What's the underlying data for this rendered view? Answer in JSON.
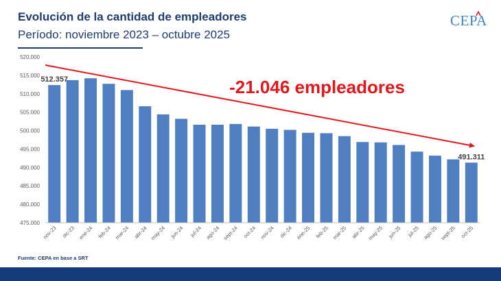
{
  "header": {
    "title": "Evolución de la cantidad de empleadores",
    "subtitle": "Período: noviembre 2023 – octubre 2025",
    "logo": "CEPA"
  },
  "footer": {
    "source": "Fuente: CEPA en base a SRT"
  },
  "colors": {
    "bar": "#4f7fc0",
    "arrow": "#e3171b",
    "title": "#1f3b70",
    "footer_bar": "#163a7a"
  },
  "chart_data": {
    "type": "bar",
    "categories": [
      "nov-23",
      "dic-23",
      "ene-24",
      "feb-24",
      "mar-24",
      "abr-24",
      "may-24",
      "jun-24",
      "jul-24",
      "ago-24",
      "sept-24",
      "oct-24",
      "nov-24",
      "dic-24",
      "ene-25",
      "feb-25",
      "mar-25",
      "abr-25",
      "may-25",
      "jun-25",
      "jul-25",
      "ago-25",
      "sept-25",
      "oct-25"
    ],
    "values": [
      512357,
      513700,
      514200,
      512700,
      511000,
      506600,
      504400,
      503200,
      501600,
      501600,
      501800,
      501100,
      500500,
      500200,
      499400,
      499300,
      498500,
      496900,
      496800,
      496100,
      494300,
      493200,
      492200,
      491311
    ],
    "ylim": [
      475000,
      520000
    ],
    "yticks": [
      475000,
      480000,
      485000,
      490000,
      495000,
      500000,
      505000,
      510000,
      515000,
      520000
    ],
    "ytick_labels": [
      "475.000",
      "480.000",
      "485.000",
      "490.000",
      "495.000",
      "500.000",
      "505.000",
      "510.000",
      "515.000",
      "520.000"
    ],
    "data_labels": [
      {
        "index": 0,
        "text": "512.357"
      },
      {
        "index": 23,
        "text": "491.311"
      }
    ],
    "annotation": "-21.046 empleadores",
    "grid": false,
    "legend": "none"
  }
}
